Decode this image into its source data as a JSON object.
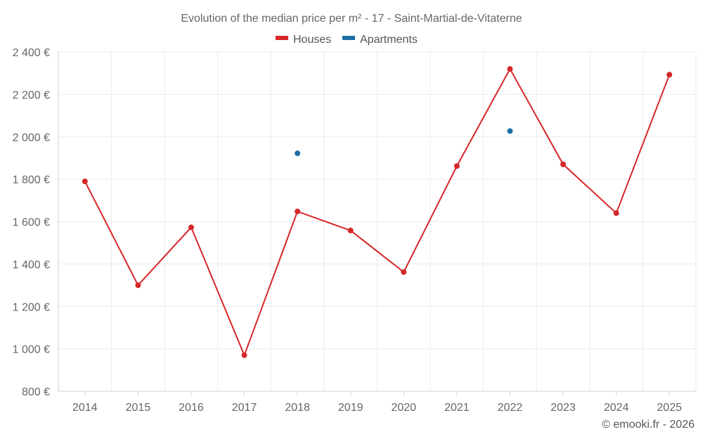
{
  "chart_data": {
    "type": "line",
    "title": "Evolution of the median price per m² - 17 - Saint-Martial-de-Vitaterne",
    "categories": [
      "2014",
      "2015",
      "2016",
      "2017",
      "2018",
      "2019",
      "2020",
      "2021",
      "2022",
      "2023",
      "2024",
      "2025"
    ],
    "series": [
      {
        "name": "Houses",
        "color": "#d62728",
        "values": [
          1790,
          1300,
          1573,
          970,
          1648,
          1558,
          1362,
          1862,
          2320,
          1870,
          1640,
          2293
        ]
      },
      {
        "name": "Apartments",
        "color": "#1f6fa6",
        "values": [
          null,
          null,
          null,
          null,
          1922,
          null,
          null,
          null,
          2027,
          null,
          null,
          null
        ]
      }
    ],
    "ylim": [
      800,
      2400
    ],
    "yticks": [
      800,
      1000,
      1200,
      1400,
      1600,
      1800,
      2000,
      2200,
      2400
    ],
    "ytick_labels": [
      "800 €",
      "1 000 €",
      "1 200 €",
      "1 400 €",
      "1 600 €",
      "1 800 €",
      "2 000 €",
      "2 200 €",
      "2 400 €"
    ],
    "grid": true,
    "legend_position": "top-center"
  },
  "credit": "© emooki.fr - 2026"
}
